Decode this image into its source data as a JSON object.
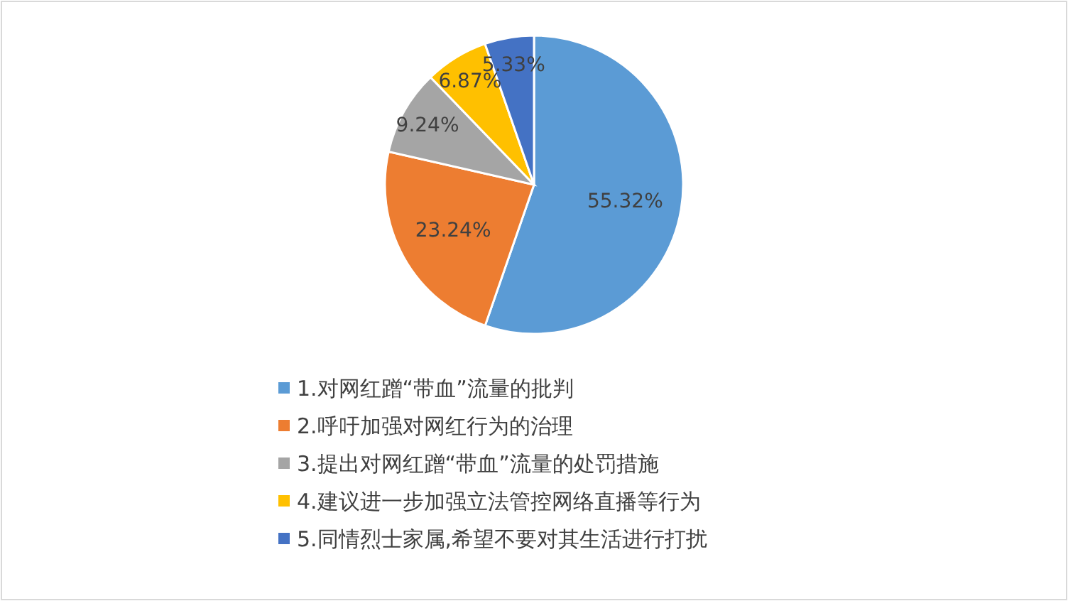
{
  "chart_data": {
    "type": "pie",
    "categories": [
      "1.对网红蹭“带血”流量的批判",
      "2.呼吁加强对网红行为的治理",
      "3.提出对网红蹭“带血”流量的处罚措施",
      "4.建议进一步加强立法管控网络直播等行为",
      "5.同情烈士家属,希望不要对其生活进行打扰"
    ],
    "values": [
      55.32,
      23.24,
      9.24,
      6.87,
      5.33
    ],
    "colors": [
      "#5b9bd5",
      "#ed7d31",
      "#a5a5a5",
      "#ffc000",
      "#4472c4"
    ],
    "value_labels": [
      "55.32%",
      "23.24%",
      "9.24%",
      "6.87%",
      "5.33%"
    ],
    "legend": "bottom"
  }
}
